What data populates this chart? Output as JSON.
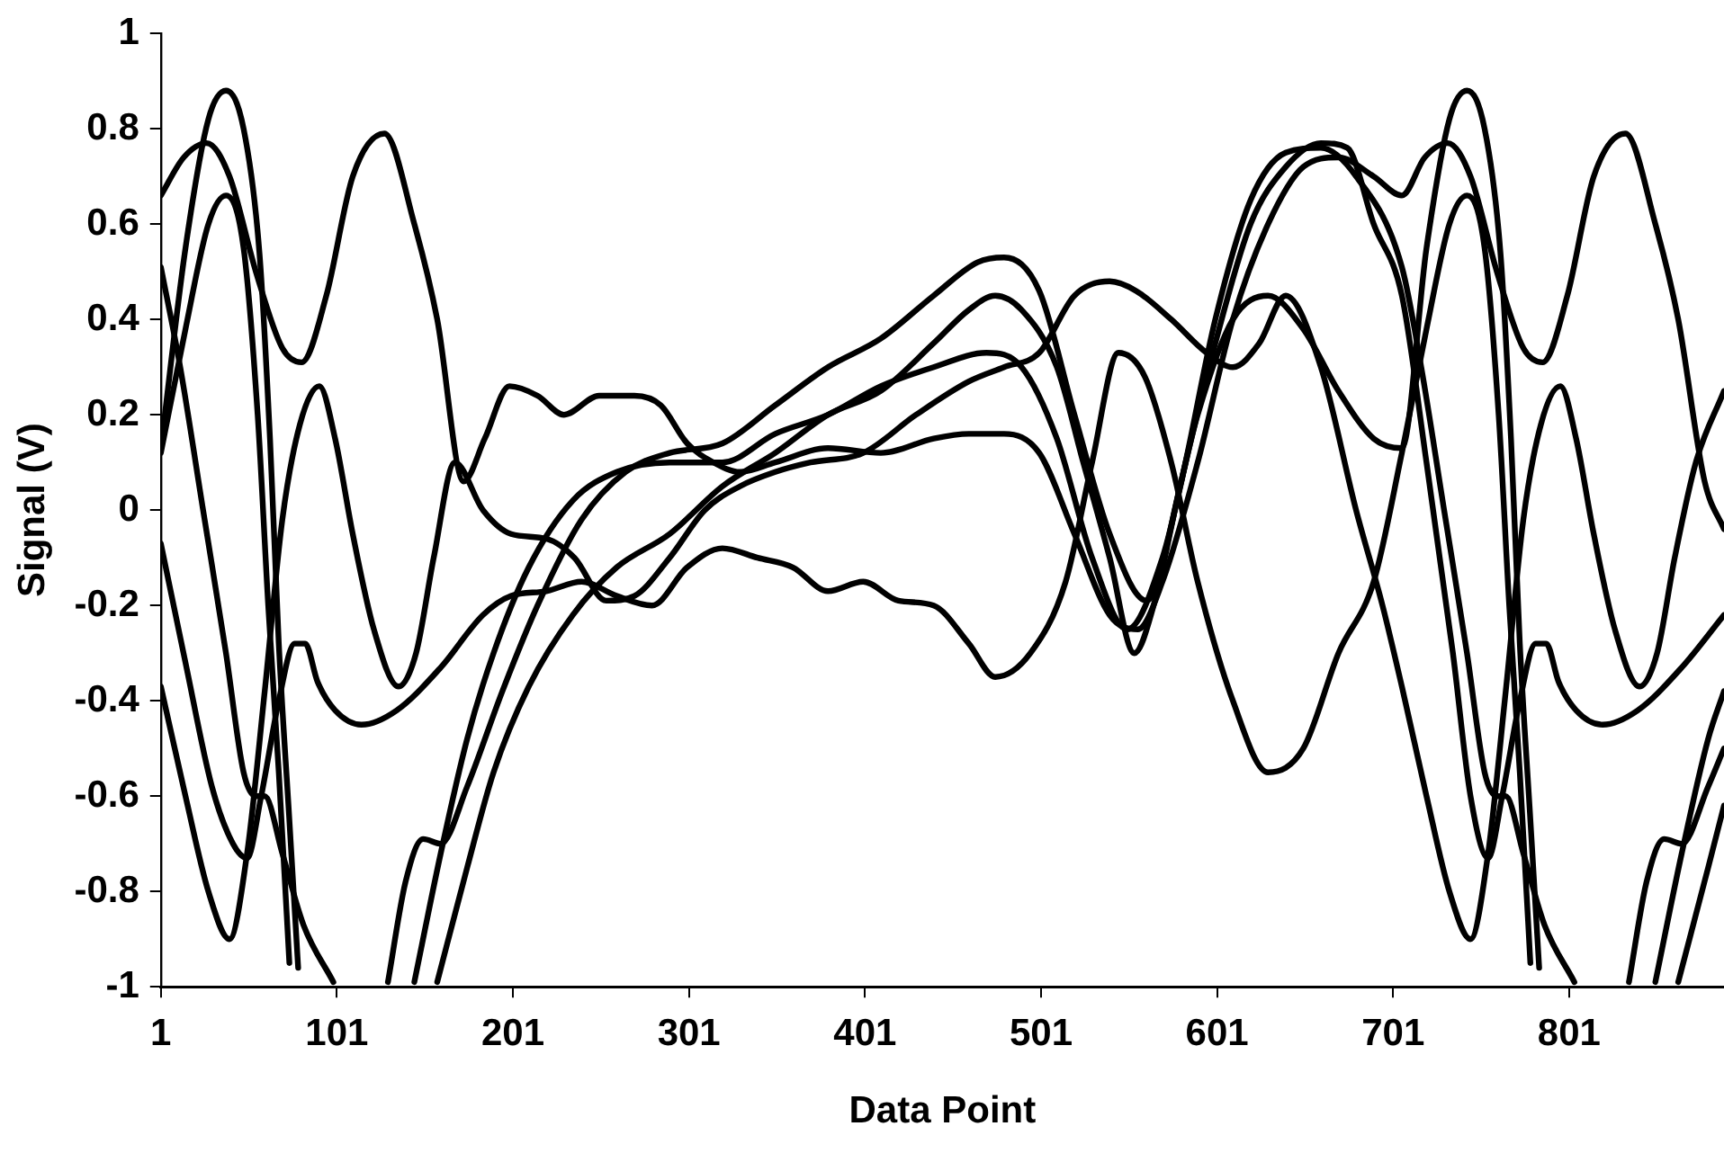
{
  "chart_data": {
    "type": "line",
    "xlabel": "Data Point",
    "ylabel": "Signal (V)",
    "xlim": [
      1,
      889
    ],
    "xticks": [
      1,
      101,
      201,
      301,
      401,
      501,
      601,
      701,
      801
    ],
    "ylim": [
      -1,
      1
    ],
    "yticks": [
      -1,
      -0.8,
      -0.6,
      -0.4,
      -0.2,
      0,
      0.2,
      0.4,
      0.6,
      0.8,
      1
    ],
    "grid": false,
    "marker": "none",
    "line_style": "solid",
    "series": [
      {
        "color": "#000000",
        "x": [
          1,
          15,
          28,
          38,
          48,
          57,
          63,
          68,
          74,
          79,
          85,
          130,
          140,
          150,
          160,
          175,
          195,
          215,
          240,
          265,
          290,
          320,
          350,
          380,
          410,
          440,
          465,
          480,
          500,
          520,
          540,
          561,
          580,
          600,
          620,
          640,
          660,
          680,
          706,
          717,
          730,
          743,
          753,
          760,
          765,
          775,
          787,
          804,
          820,
          863,
          880,
          889
        ],
        "values": [
          0.13,
          0.55,
          0.82,
          0.88,
          0.8,
          0.54,
          0.15,
          -0.28,
          -0.65,
          -0.96,
          null,
          -0.99,
          -0.78,
          -0.69,
          -0.7,
          -0.58,
          -0.38,
          -0.2,
          -0.02,
          0.08,
          0.12,
          0.14,
          0.22,
          0.3,
          0.36,
          0.45,
          0.52,
          0.53,
          0.46,
          0.2,
          -0.05,
          -0.19,
          0.05,
          0.4,
          0.65,
          0.75,
          0.76,
          0.7,
          0.51,
          0.3,
          0,
          -0.3,
          -0.55,
          -0.6,
          -0.6,
          -0.72,
          -0.87,
          -0.99,
          null,
          -0.99,
          -0.75,
          -0.62
        ]
      },
      {
        "color": "#000000",
        "x": [
          1,
          14,
          27,
          40,
          55,
          70,
          81,
          95,
          110,
          128,
          145,
          158,
          173,
          185,
          199,
          215,
          230,
          250,
          270,
          285,
          300,
          315,
          330,
          350,
          380,
          410,
          440,
          460,
          480,
          500,
          520,
          540,
          556,
          570,
          590,
          610,
          630,
          650,
          670,
          690,
          706,
          719,
          732,
          745,
          760,
          775,
          786,
          800,
          815,
          833,
          850,
          863,
          878,
          889
        ],
        "values": [
          0.66,
          0.74,
          0.77,
          0.7,
          0.5,
          0.34,
          0.31,
          0.45,
          0.7,
          0.79,
          0.6,
          0.4,
          0.06,
          0.15,
          0.26,
          0.24,
          0.2,
          0.24,
          0.24,
          0.22,
          0.14,
          0.1,
          0.08,
          0.1,
          0.13,
          0.12,
          0.15,
          0.16,
          0.16,
          0.12,
          -0.05,
          -0.22,
          -0.25,
          -0.15,
          0.1,
          0.4,
          0.6,
          0.72,
          0.74,
          0.7,
          0.66,
          0.74,
          0.77,
          0.7,
          0.5,
          0.34,
          0.31,
          0.45,
          0.7,
          0.79,
          0.6,
          0.4,
          0.06,
          -0.04
        ]
      },
      {
        "color": "#000000",
        "x": [
          1,
          15,
          28,
          38,
          48,
          56,
          62,
          68,
          74,
          85,
          145,
          160,
          175,
          190,
          210,
          235,
          260,
          290,
          320,
          350,
          380,
          410,
          440,
          470,
          490,
          510,
          530,
          550,
          570,
          590,
          610,
          630,
          650,
          670,
          690,
          706,
          720,
          733,
          743,
          753,
          762,
          768,
          773,
          779,
          784,
          800,
          835,
          845,
          855,
          865,
          880,
          889
        ],
        "values": [
          0.12,
          0.38,
          0.6,
          0.66,
          0.55,
          0.2,
          -0.2,
          -0.55,
          -0.95,
          null,
          -0.99,
          -0.72,
          -0.48,
          -0.3,
          -0.12,
          0.02,
          0.08,
          0.1,
          0.1,
          0.16,
          0.2,
          0.26,
          0.3,
          0.33,
          0.3,
          0.15,
          -0.1,
          -0.25,
          -0.1,
          0.2,
          0.4,
          0.45,
          0.38,
          0.25,
          0.15,
          0.13,
          0.55,
          0.82,
          0.88,
          0.8,
          0.54,
          0.15,
          -0.28,
          -0.65,
          -0.96,
          null,
          -0.99,
          -0.78,
          -0.69,
          -0.7,
          -0.58,
          -0.5
        ]
      },
      {
        "color": "#000000",
        "x": [
          1,
          12,
          25,
          38,
          48,
          55,
          60,
          70,
          82,
          99,
          110,
          158,
          175,
          190,
          210,
          235,
          260,
          290,
          320,
          350,
          380,
          410,
          440,
          460,
          475,
          490,
          510,
          525,
          540,
          554,
          565,
          580,
          600,
          620,
          640,
          660,
          675,
          690,
          706,
          720,
          735,
          745,
          755,
          763,
          773,
          782,
          788,
          795,
          805,
          820,
          840,
          865,
          889
        ],
        "values": [
          0.51,
          0.3,
          0,
          -0.3,
          -0.55,
          -0.6,
          -0.6,
          -0.72,
          -0.87,
          -0.99,
          null,
          -0.99,
          -0.75,
          -0.55,
          -0.37,
          -0.22,
          -0.12,
          -0.05,
          0.05,
          0.12,
          0.2,
          0.25,
          0.35,
          0.42,
          0.45,
          0.42,
          0.3,
          0.1,
          -0.1,
          -0.3,
          -0.2,
          0.05,
          0.35,
          0.6,
          0.72,
          0.77,
          0.76,
          0.6,
          0.45,
          0.1,
          -0.3,
          -0.6,
          -0.73,
          -0.6,
          -0.4,
          -0.28,
          -0.28,
          -0.36,
          -0.42,
          -0.45,
          -0.42,
          -0.33,
          -0.22
        ]
      },
      {
        "color": "#000000",
        "x": [
          1,
          15,
          30,
          42,
          50,
          58,
          68,
          77,
          83,
          90,
          100,
          115,
          135,
          160,
          184,
          200,
          220,
          240,
          260,
          280,
          300,
          320,
          340,
          360,
          380,
          400,
          420,
          440,
          460,
          475,
          495,
          515,
          530,
          545,
          560,
          575,
          590,
          610,
          630,
          650,
          670,
          690,
          706,
          720,
          733,
          743,
          753,
          761,
          767,
          773,
          779,
          790,
          850,
          865,
          880,
          889
        ],
        "values": [
          -0.07,
          -0.32,
          -0.58,
          -0.7,
          -0.73,
          -0.6,
          -0.4,
          -0.28,
          -0.28,
          -0.36,
          -0.42,
          -0.45,
          -0.42,
          -0.33,
          -0.22,
          -0.18,
          -0.17,
          -0.15,
          -0.18,
          -0.2,
          -0.12,
          -0.08,
          -0.1,
          -0.12,
          -0.17,
          -0.15,
          -0.19,
          -0.2,
          -0.28,
          -0.35,
          -0.3,
          -0.15,
          0.1,
          0.33,
          0.28,
          0.1,
          -0.15,
          -0.4,
          -0.55,
          -0.5,
          -0.3,
          -0.15,
          0.12,
          0.38,
          0.6,
          0.66,
          0.55,
          0.2,
          -0.2,
          -0.55,
          -0.95,
          null,
          -0.99,
          -0.72,
          -0.48,
          -0.38
        ]
      },
      {
        "color": "#000000",
        "x": [
          1,
          15,
          28,
          40,
          50,
          60,
          70,
          80,
          91,
          100,
          110,
          122,
          136,
          146,
          156,
          168,
          184,
          200,
          220,
          236,
          254,
          270,
          290,
          310,
          330,
          350,
          370,
          400,
          430,
          460,
          480,
          500,
          520,
          540,
          555,
          575,
          595,
          610,
          625,
          640,
          660,
          680,
          695,
          706,
          720,
          733,
          745,
          755,
          765,
          775,
          785,
          796,
          805,
          815,
          827,
          841,
          851,
          861,
          873,
          889
        ],
        "values": [
          -0.37,
          -0.6,
          -0.8,
          -0.9,
          -0.72,
          -0.38,
          -0.02,
          0.18,
          0.26,
          0.15,
          -0.05,
          -0.25,
          -0.37,
          -0.3,
          -0.1,
          0.1,
          0,
          -0.05,
          -0.06,
          -0.1,
          -0.19,
          -0.18,
          -0.1,
          0,
          0.05,
          0.08,
          0.1,
          0.12,
          0.2,
          0.27,
          0.3,
          0.33,
          0.45,
          0.48,
          0.46,
          0.4,
          0.33,
          0.3,
          0.35,
          0.45,
          0.3,
          0,
          -0.2,
          -0.37,
          -0.6,
          -0.8,
          -0.9,
          -0.72,
          -0.38,
          -0.02,
          0.18,
          0.26,
          0.15,
          -0.05,
          -0.25,
          -0.37,
          -0.3,
          -0.1,
          0.1,
          0.25
        ]
      }
    ]
  }
}
